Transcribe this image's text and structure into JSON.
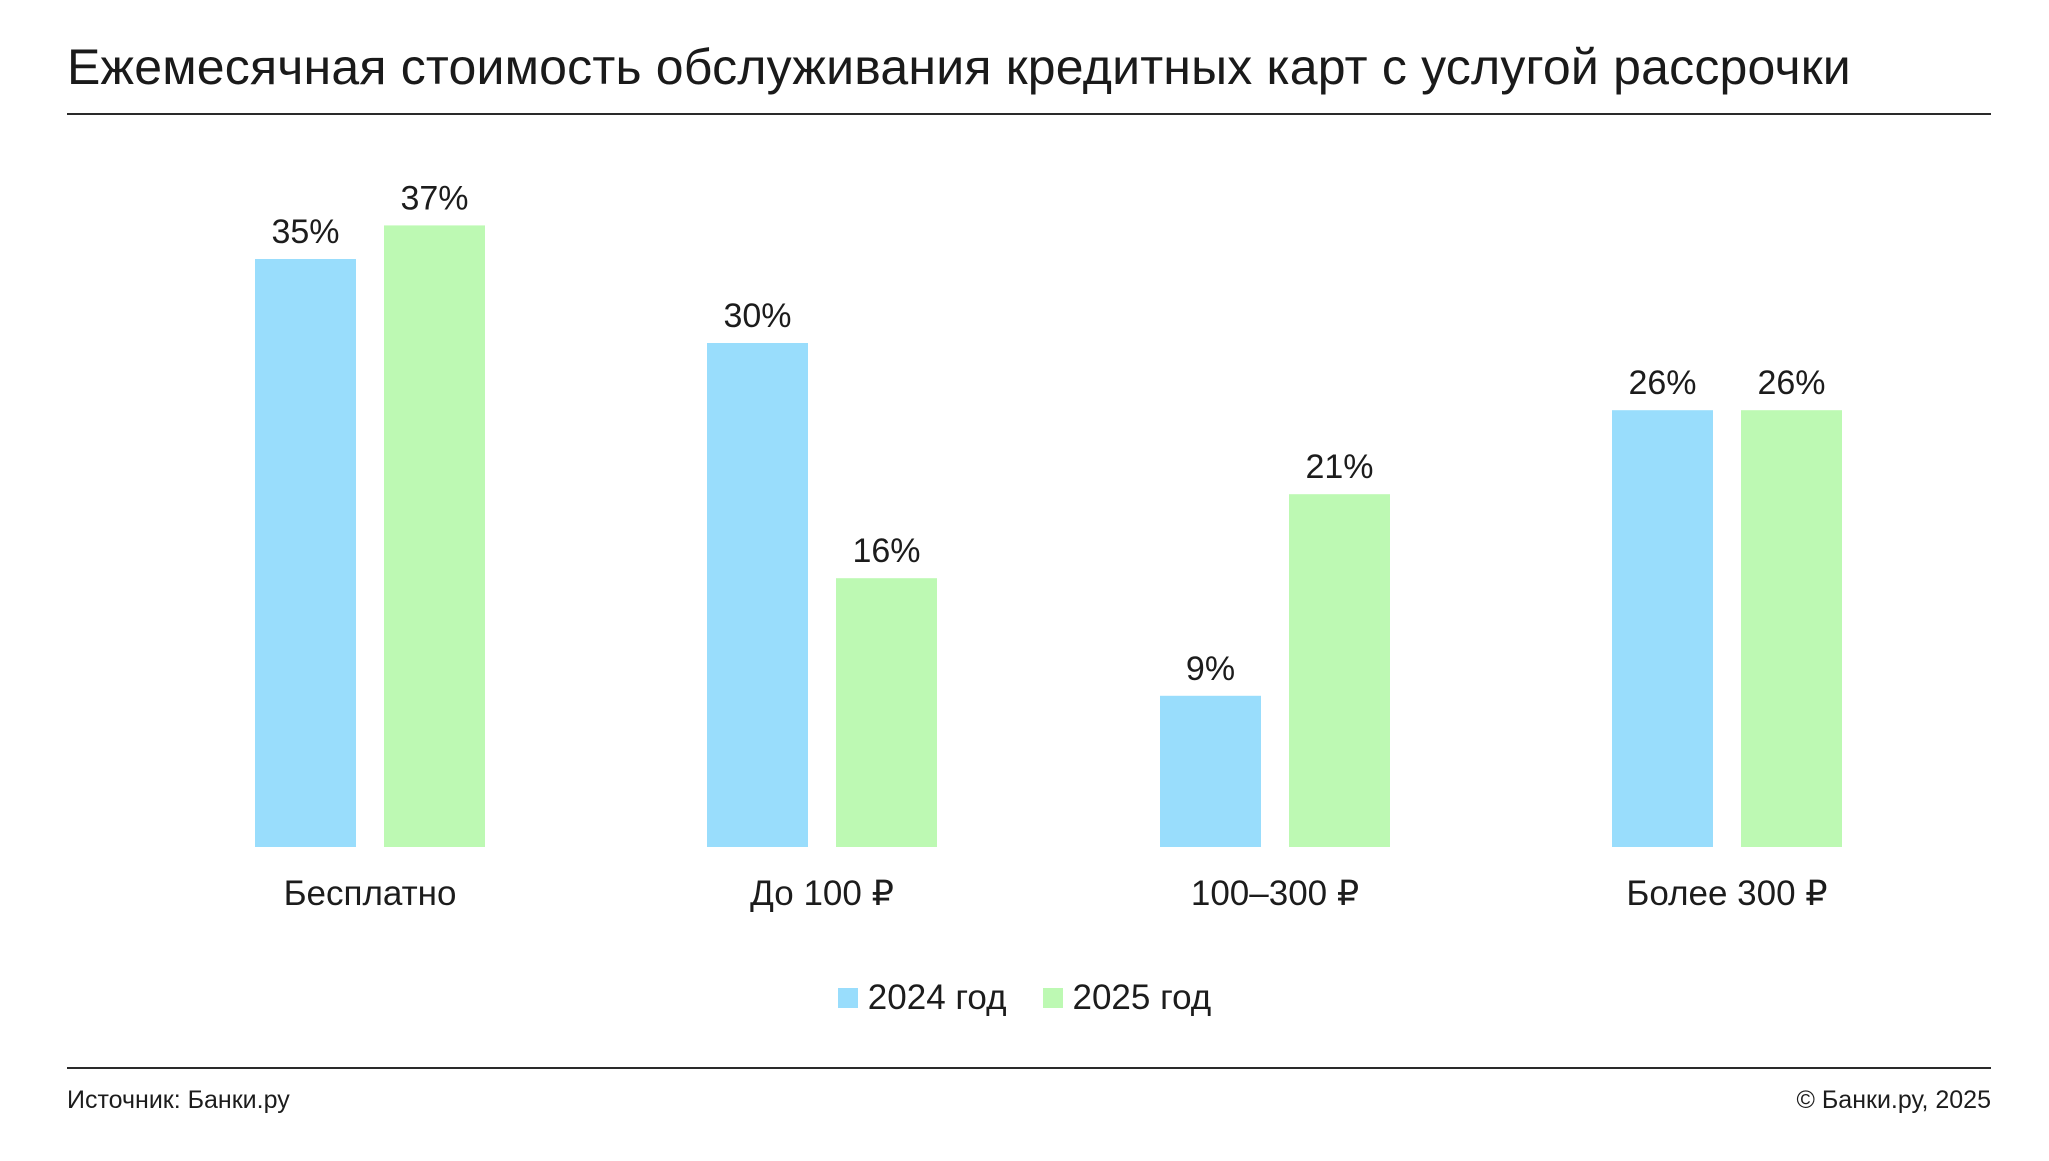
{
  "header": {
    "title": "Ежемесячная стоимость обслуживания кредитных карт с услугой рассрочки"
  },
  "footer": {
    "source": "Источник: Банки.ру",
    "copyright": "© Банки.ру, 2025"
  },
  "chart_data": {
    "type": "bar",
    "title": "Ежемесячная стоимость обслуживания кредитных карт с услугой рассрочки",
    "categories": [
      "Бесплатно",
      "До 100 ₽",
      "100–300 ₽",
      "Более 300 ₽"
    ],
    "series": [
      {
        "name": "2024 год",
        "values": [
          35,
          30,
          9,
          26
        ],
        "labels": [
          "35%",
          "30%",
          "9%",
          "26%"
        ],
        "color": "#99DDFC"
      },
      {
        "name": "2025 год",
        "values": [
          37,
          16,
          21,
          26
        ],
        "labels": [
          "37%",
          "16%",
          "21%",
          "26%"
        ],
        "color": "#BDF9B3"
      }
    ],
    "unit": "%",
    "grid": false,
    "legend_position": "bottom-center"
  }
}
